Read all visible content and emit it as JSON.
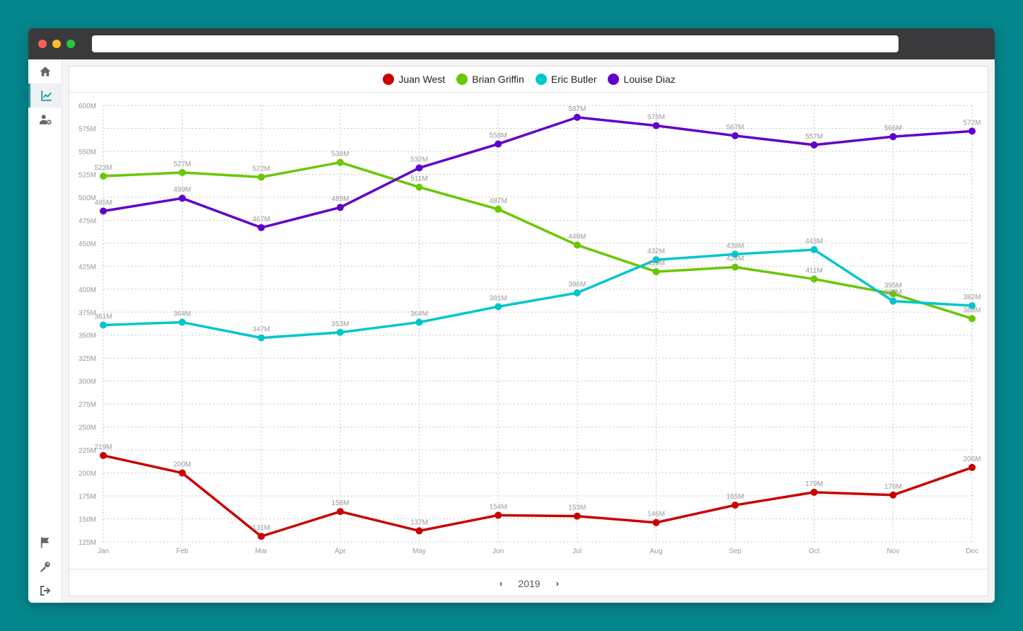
{
  "icons": {
    "home": "home-icon",
    "chart": "chart-line-icon",
    "user_settings": "user-gear-icon",
    "flag": "flag-icon",
    "key": "key-icon",
    "logout": "sign-out-icon",
    "prev": "chevron-left-icon",
    "next": "chevron-right-icon"
  },
  "footer": {
    "year_label": "2019",
    "prev_glyph": "‹",
    "next_glyph": "›"
  },
  "chart_data": {
    "type": "line",
    "categories": [
      "Jan",
      "Feb",
      "Mar",
      "Apr",
      "May",
      "Jun",
      "Jul",
      "Aug",
      "Sep",
      "Oct",
      "Nov",
      "Dec"
    ],
    "ylim": [
      125,
      600
    ],
    "yticks": [
      125,
      150,
      175,
      200,
      225,
      250,
      275,
      300,
      325,
      350,
      375,
      400,
      425,
      450,
      475,
      500,
      525,
      550,
      575,
      600
    ],
    "ytick_labels": [
      "125M",
      "150M",
      "175M",
      "200M",
      "225M",
      "250M",
      "275M",
      "300M",
      "325M",
      "350M",
      "375M",
      "400M",
      "425M",
      "450M",
      "475M",
      "500M",
      "525M",
      "550M",
      "575M",
      "600M"
    ],
    "grid": true,
    "legend_position": "top-center",
    "value_suffix": "M",
    "series": [
      {
        "name": "Juan West",
        "color": "#c90000",
        "values": [
          219,
          200,
          131,
          158,
          137,
          154,
          153,
          146,
          165,
          179,
          176,
          206
        ]
      },
      {
        "name": "Brian Griffin",
        "color": "#6ac700",
        "values": [
          523,
          527,
          522,
          538,
          511,
          487,
          448,
          419,
          424,
          411,
          395,
          368
        ]
      },
      {
        "name": "Eric Butler",
        "color": "#00c6cc",
        "values": [
          361,
          364,
          347,
          353,
          364,
          381,
          396,
          432,
          438,
          443,
          387,
          382
        ]
      },
      {
        "name": "Louise Diaz",
        "color": "#6100c9",
        "values": [
          485,
          499,
          467,
          489,
          532,
          558,
          587,
          578,
          567,
          557,
          566,
          572
        ]
      }
    ]
  }
}
